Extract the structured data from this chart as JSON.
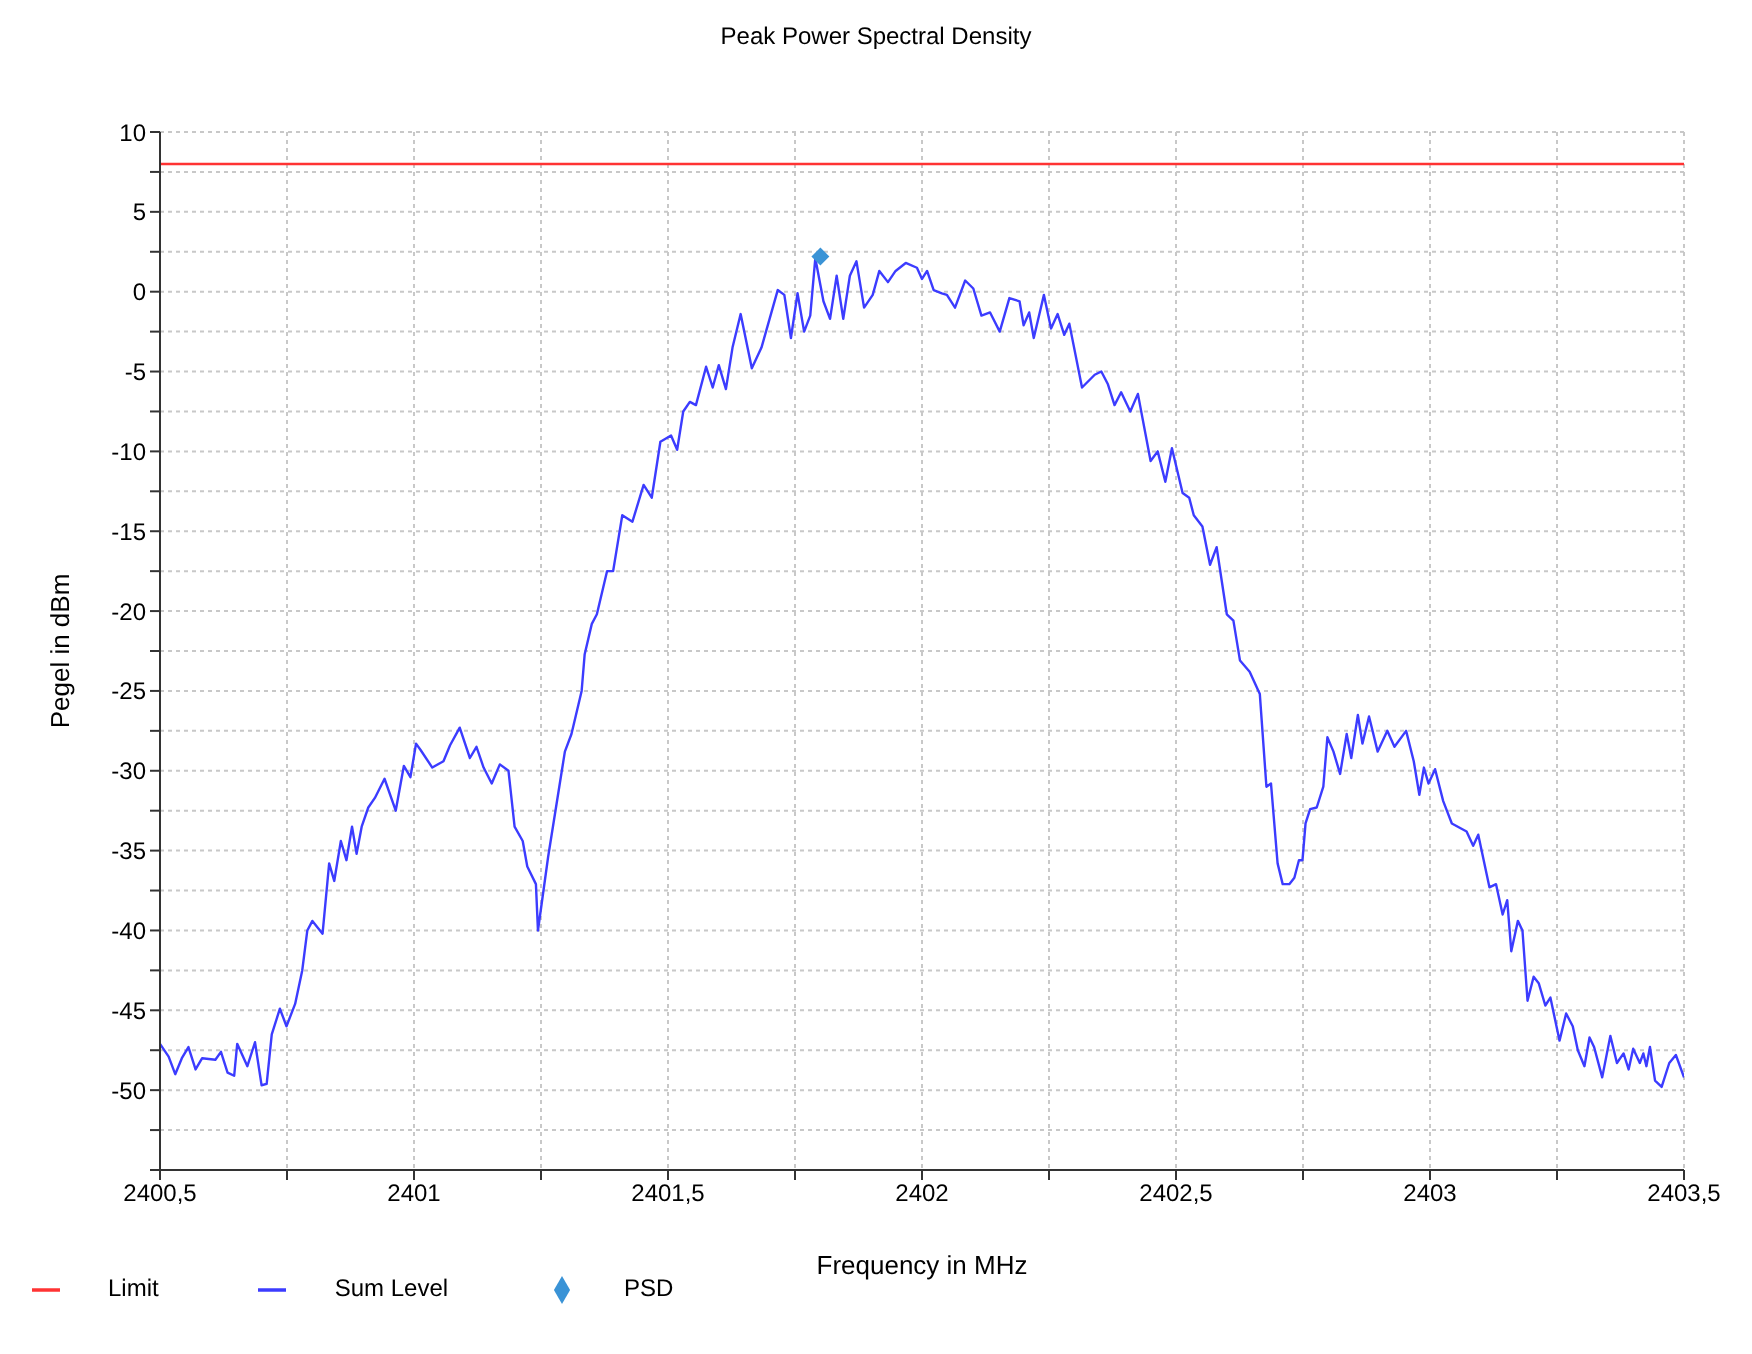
{
  "chart_data": {
    "type": "line",
    "title": "Peak Power Spectral Density",
    "xlabel": "Frequency in MHz",
    "ylabel": "Pegel in dBm",
    "xlim": [
      2400.5,
      2403.5
    ],
    "xticks": [
      {
        "value": 2400.5,
        "label": "2400,5"
      },
      {
        "value": 2400.75,
        "label": null
      },
      {
        "value": 2401,
        "label": "2401"
      },
      {
        "value": 2401.25,
        "label": null
      },
      {
        "value": 2401.5,
        "label": "2401,5"
      },
      {
        "value": 2401.75,
        "label": null
      },
      {
        "value": 2402,
        "label": "2402"
      },
      {
        "value": 2402.25,
        "label": null
      },
      {
        "value": 2402.5,
        "label": "2402,5"
      },
      {
        "value": 2402.75,
        "label": null
      },
      {
        "value": 2403,
        "label": "2403"
      },
      {
        "value": 2403.25,
        "label": null
      },
      {
        "value": 2403.5,
        "label": "2403,5"
      }
    ],
    "ylim": [
      -55,
      10
    ],
    "yticks": [
      {
        "value": -55,
        "label": null
      },
      {
        "value": -52.5,
        "label": null
      },
      -50,
      {
        "value": -47.5,
        "label": null
      },
      -45,
      {
        "value": -42.5,
        "label": null
      },
      -40,
      {
        "value": -37.5,
        "label": null
      },
      -35,
      {
        "value": -32.5,
        "label": null
      },
      -30,
      {
        "value": -27.5,
        "label": null
      },
      -25,
      {
        "value": -22.5,
        "label": null
      },
      -20,
      {
        "value": -17.5,
        "label": null
      },
      -15,
      {
        "value": -12.5,
        "label": null
      },
      -10,
      {
        "value": -7.5,
        "label": null
      },
      -5,
      {
        "value": -2.5,
        "label": null
      },
      0,
      {
        "value": 2.5,
        "label": null
      },
      5,
      {
        "value": 7.5,
        "label": null
      },
      10
    ],
    "grid": true,
    "legend": "bottom left",
    "line_style": "solid",
    "marker": "none",
    "series": [
      {
        "name": "Limit",
        "color": "#ff3333",
        "x": [
          2400.5,
          2403.5
        ],
        "values": [
          8,
          8
        ]
      },
      {
        "name": "Sum Level",
        "color": "#3c3cff",
        "x": [
          2400.5,
          2400.517,
          2400.53,
          2400.543,
          2400.556,
          2400.57,
          2400.583,
          2400.609,
          2400.62,
          2400.633,
          2400.646,
          2400.652,
          2400.672,
          2400.687,
          2400.7,
          2400.71,
          2400.72,
          2400.736,
          2400.749,
          2400.766,
          2400.78,
          2400.79,
          2400.8,
          2400.82,
          2400.833,
          2400.843,
          2400.856,
          2400.867,
          2400.878,
          2400.887,
          2400.897,
          2400.91,
          2400.923,
          2400.942,
          2400.964,
          2400.98,
          2400.993,
          2401.004,
          2401.013,
          2401.036,
          2401.058,
          2401.071,
          2401.09,
          2401.11,
          2401.123,
          2401.137,
          2401.153,
          2401.169,
          2401.186,
          2401.198,
          2401.214,
          2401.223,
          2401.24,
          2401.244,
          2401.264,
          2401.286,
          2401.297,
          2401.31,
          2401.33,
          2401.336,
          2401.35,
          2401.36,
          2401.38,
          2401.392,
          2401.41,
          2401.43,
          2401.452,
          2401.468,
          2401.485,
          2401.506,
          2401.518,
          2401.53,
          2401.543,
          2401.555,
          2401.575,
          2401.588,
          2401.6,
          2401.614,
          2401.627,
          2401.643,
          2401.665,
          2401.684,
          2401.7,
          2401.716,
          2401.729,
          2401.742,
          2401.755,
          2401.768,
          2401.78,
          2401.79,
          2401.806,
          2401.819,
          2401.832,
          2401.845,
          2401.858,
          2401.871,
          2401.886,
          2401.903,
          2401.916,
          2401.933,
          2401.948,
          2401.968,
          2401.99,
          2402,
          2402.01,
          2402.023,
          2402.039,
          2402.049,
          2402.065,
          2402.085,
          2402.101,
          2402.117,
          2402.134,
          2402.153,
          2402.172,
          2402.192,
          2402.2,
          2402.211,
          2402.22,
          2402.24,
          2402.254,
          2402.267,
          2402.28,
          2402.29,
          2402.315,
          2402.34,
          2402.353,
          2402.366,
          2402.379,
          2402.392,
          2402.41,
          2402.425,
          2402.45,
          2402.464,
          2402.479,
          2402.492,
          2402.513,
          2402.526,
          2402.535,
          2402.552,
          2402.567,
          2402.58,
          2402.6,
          2402.613,
          2402.626,
          2402.645,
          2402.665,
          2402.678,
          2402.687,
          2402.7,
          2402.71,
          2402.723,
          2402.733,
          2402.742,
          2402.749,
          2402.755,
          2402.764,
          2402.777,
          2402.79,
          2402.798,
          2402.81,
          2402.823,
          2402.836,
          2402.845,
          2402.858,
          2402.867,
          2402.88,
          2402.897,
          2402.916,
          2402.93,
          2402.953,
          2402.968,
          2402.979,
          2402.988,
          2402.997,
          2403.01,
          2403.026,
          2403.043,
          2403.072,
          2403.085,
          2403.095,
          2403.117,
          2403.13,
          2403.143,
          2403.152,
          2403.16,
          2403.173,
          2403.182,
          2403.192,
          2403.204,
          2403.214,
          2403.227,
          2403.237,
          2403.255,
          2403.268,
          2403.281,
          2403.291,
          2403.304,
          2403.314,
          2403.323,
          2403.339,
          2403.355,
          2403.368,
          2403.381,
          2403.391,
          2403.4,
          2403.413,
          2403.42,
          2403.426,
          2403.433,
          2403.443,
          2403.456,
          2403.471,
          2403.484,
          2403.5
        ],
        "values": [
          -47.1,
          -47.9,
          -49,
          -48,
          -47.3,
          -48.7,
          -48,
          -48.1,
          -47.6,
          -48.9,
          -49.1,
          -47.1,
          -48.5,
          -47,
          -49.7,
          -49.6,
          -46.5,
          -44.9,
          -46,
          -44.6,
          -42.5,
          -40,
          -39.4,
          -40.2,
          -35.8,
          -36.9,
          -34.4,
          -35.6,
          -33.5,
          -35.2,
          -33.5,
          -32.3,
          -31.7,
          -30.5,
          -32.5,
          -29.7,
          -30.4,
          -28.3,
          -28.7,
          -29.8,
          -29.4,
          -28.4,
          -27.3,
          -29.2,
          -28.5,
          -29.8,
          -30.8,
          -29.6,
          -30,
          -33.5,
          -34.4,
          -36,
          -37.1,
          -40,
          -35.4,
          -31,
          -28.8,
          -27.7,
          -25,
          -22.7,
          -20.8,
          -20.2,
          -17.5,
          -17.5,
          -14,
          -14.4,
          -12.1,
          -12.9,
          -9.4,
          -9,
          -9.9,
          -7.5,
          -6.9,
          -7.1,
          -4.7,
          -6,
          -4.6,
          -6.1,
          -3.5,
          -1.4,
          -4.8,
          -3.5,
          -1.7,
          0.1,
          -0.2,
          -2.9,
          -0.1,
          -2.5,
          -1.5,
          2.1,
          -0.6,
          -1.7,
          1,
          -1.7,
          1,
          1.9,
          -1,
          -0.2,
          1.3,
          0.6,
          1.3,
          1.8,
          1.5,
          0.8,
          1.3,
          0.1,
          -0.1,
          -0.2,
          -1,
          0.7,
          0.2,
          -1.5,
          -1.3,
          -2.5,
          -0.4,
          -0.6,
          -2.1,
          -1.3,
          -2.9,
          -0.2,
          -2.3,
          -1.4,
          -2.7,
          -2,
          -6,
          -5.2,
          -5,
          -5.8,
          -7.1,
          -6.3,
          -7.5,
          -6.4,
          -10.6,
          -10,
          -11.9,
          -9.8,
          -12.6,
          -12.9,
          -14,
          -14.7,
          -17.1,
          -16,
          -20.2,
          -20.6,
          -23.1,
          -23.8,
          -25.2,
          -31,
          -30.8,
          -35.8,
          -37.1,
          -37.1,
          -36.7,
          -35.6,
          -35.6,
          -33.3,
          -32.4,
          -32.3,
          -31,
          -27.9,
          -28.8,
          -30.2,
          -27.7,
          -29.2,
          -26.5,
          -28.3,
          -26.6,
          -28.8,
          -27.5,
          -28.5,
          -27.5,
          -29.4,
          -31.5,
          -29.8,
          -30.8,
          -29.9,
          -31.9,
          -33.3,
          -33.8,
          -34.7,
          -34,
          -37.3,
          -37.1,
          -39,
          -38.1,
          -41.3,
          -39.4,
          -40,
          -44.4,
          -42.9,
          -43.3,
          -44.7,
          -44.2,
          -46.9,
          -45.2,
          -46,
          -47.5,
          -48.5,
          -46.7,
          -47.3,
          -49.2,
          -46.6,
          -48.3,
          -47.7,
          -48.7,
          -47.4,
          -48.3,
          -47.7,
          -48.5,
          -47.3,
          -49.4,
          -49.8,
          -48.3,
          -47.8,
          -49.2
        ]
      },
      {
        "name": "PSD",
        "type": "scatter",
        "color": "#3a93d6",
        "marker": "diamond",
        "x": [
          2401.8
        ],
        "values": [
          2.2
        ]
      }
    ]
  }
}
